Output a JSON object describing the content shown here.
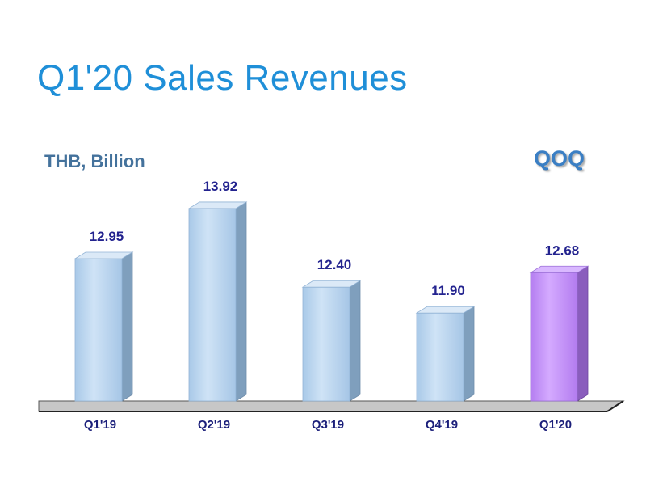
{
  "title": "Q1'20 Sales Revenues",
  "unit_label": "THB, Billion",
  "comparison_label": "QOQ",
  "colors": {
    "title": "#1f8fd8",
    "unit": "#44729c",
    "bar_regular": "#bcd7ef",
    "bar_highlight": "#c999ff",
    "value_label": "#23238f"
  },
  "chart_data": {
    "type": "bar",
    "categories": [
      "Q1'19",
      "Q2'19",
      "Q3'19",
      "Q4'19",
      "Q1'20"
    ],
    "values": [
      12.95,
      13.92,
      12.4,
      11.9,
      12.68
    ],
    "value_labels": [
      "12.95",
      "13.92",
      "12.40",
      "11.90",
      "12.68"
    ],
    "highlight_index": 4,
    "title": "Q1'20 Sales Revenues",
    "ylabel": "THB, Billion",
    "grid": false,
    "legend": "none"
  }
}
